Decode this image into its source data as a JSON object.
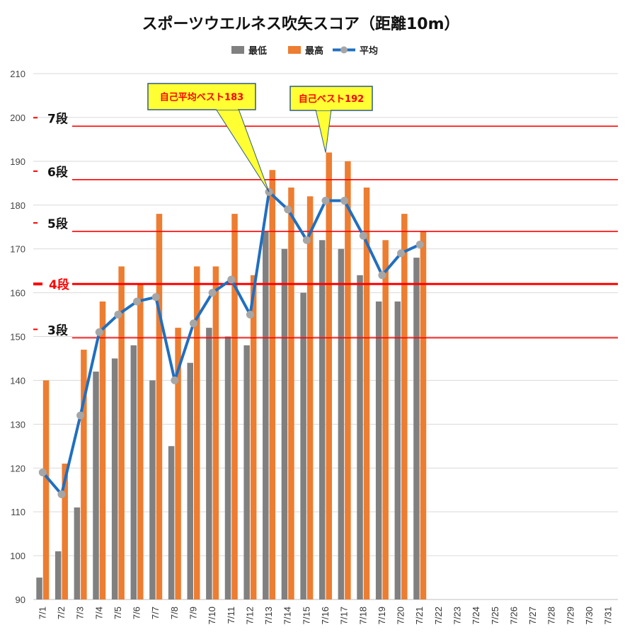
{
  "chart_data": {
    "type": "bar",
    "title": "スポーツウエルネス吹矢スコア（距離10m）",
    "categories": [
      "7/1",
      "7/2",
      "7/3",
      "7/4",
      "7/5",
      "7/6",
      "7/7",
      "7/8",
      "7/9",
      "7/10",
      "7/11",
      "7/12",
      "7/13",
      "7/14",
      "7/15",
      "7/16",
      "7/17",
      "7/18",
      "7/19",
      "7/20",
      "7/21",
      "7/22",
      "7/23",
      "7/24",
      "7/25",
      "7/26",
      "7/27",
      "7/28",
      "7/29",
      "7/30",
      "7/31"
    ],
    "series": [
      {
        "name": "最低",
        "type": "bar",
        "color": "#808080",
        "values": [
          95,
          101,
          111,
          142,
          145,
          148,
          140,
          125,
          144,
          152,
          150,
          148,
          174,
          170,
          160,
          172,
          170,
          164,
          158,
          158,
          168,
          null,
          null,
          null,
          null,
          null,
          null,
          null,
          null,
          null,
          null
        ]
      },
      {
        "name": "最高",
        "type": "bar",
        "color": "#ed7d31",
        "values": [
          140,
          121,
          147,
          158,
          166,
          162,
          178,
          152,
          166,
          166,
          178,
          164,
          188,
          184,
          182,
          192,
          190,
          184,
          172,
          178,
          174,
          null,
          null,
          null,
          null,
          null,
          null,
          null,
          null,
          null,
          null
        ]
      },
      {
        "name": "平均",
        "type": "line",
        "color": "#1f6fc1",
        "marker_color": "#a6a6a6",
        "values": [
          119,
          114,
          132,
          151,
          155,
          158,
          159,
          140,
          153,
          160,
          163,
          155,
          183,
          179,
          172,
          181,
          181,
          173,
          164,
          169,
          171,
          null,
          null,
          null,
          null,
          null,
          null,
          null,
          null,
          null,
          null
        ]
      }
    ],
    "ylim": [
      90,
      210
    ],
    "yticks": [
      90,
      100,
      110,
      120,
      130,
      140,
      150,
      160,
      170,
      180,
      190,
      200,
      210
    ],
    "grid": true,
    "legend_position": "top-center",
    "reference_lines": [
      {
        "label": "3段",
        "value": 149.7,
        "highlight": false
      },
      {
        "label": "4段",
        "value": 162,
        "highlight": true
      },
      {
        "label": "5段",
        "value": 174,
        "highlight": false
      },
      {
        "label": "6段",
        "value": 185.8,
        "highlight": false
      },
      {
        "label": "7段",
        "value": 198,
        "highlight": false
      }
    ],
    "annotations": [
      {
        "text": "自己平均ベスト183",
        "category": "7/13",
        "value": 183
      },
      {
        "text": "自己ベスト192",
        "category": "7/16",
        "value": 192
      }
    ]
  },
  "colors": {
    "reference_line": "#ff0000",
    "callout_fill": "#ffff33",
    "callout_border": "#2e5a88",
    "grid": "#d9d9d9"
  }
}
